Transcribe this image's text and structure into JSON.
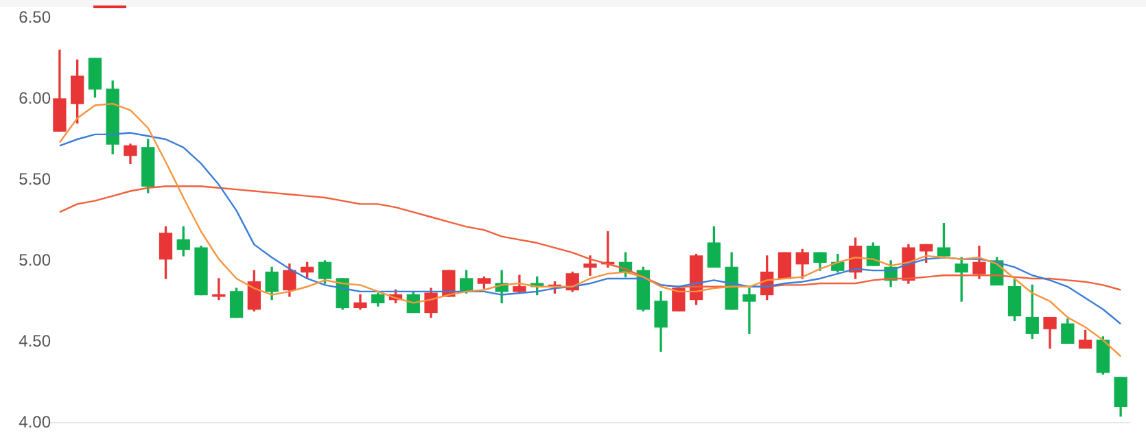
{
  "chart_data": {
    "type": "candlestick",
    "categories": [
      null,
      null,
      null,
      null,
      null,
      null,
      null,
      null,
      null,
      null,
      null,
      null,
      null,
      null,
      null,
      null,
      null,
      null,
      null,
      null,
      null,
      null,
      null,
      null,
      null,
      null,
      null,
      null,
      null,
      null,
      null,
      null,
      null,
      null,
      null,
      null,
      null,
      null,
      null,
      null,
      null,
      null,
      null,
      null,
      null,
      null,
      null,
      null,
      null,
      null,
      null,
      null,
      null,
      null,
      null,
      null,
      null,
      null,
      null,
      null,
      null
    ],
    "ohlc": [
      [
        5.8,
        6.3,
        5.8,
        6.0
      ],
      [
        5.97,
        6.24,
        5.85,
        6.14
      ],
      [
        6.25,
        6.25,
        6.01,
        6.06
      ],
      [
        6.06,
        6.11,
        5.66,
        5.72
      ],
      [
        5.65,
        5.72,
        5.6,
        5.71
      ],
      [
        5.7,
        5.75,
        5.42,
        5.46
      ],
      [
        5.01,
        5.21,
        4.89,
        5.17
      ],
      [
        5.13,
        5.21,
        5.03,
        5.07
      ],
      [
        5.08,
        5.09,
        4.79,
        4.79
      ],
      [
        4.78,
        4.89,
        4.76,
        4.79
      ],
      [
        4.81,
        4.83,
        4.65,
        4.65
      ],
      [
        4.7,
        4.94,
        4.69,
        4.87
      ],
      [
        4.93,
        4.96,
        4.76,
        4.81
      ],
      [
        4.82,
        4.98,
        4.78,
        4.94
      ],
      [
        4.93,
        4.99,
        4.89,
        4.96
      ],
      [
        4.99,
        5.0,
        4.86,
        4.89
      ],
      [
        4.89,
        4.89,
        4.7,
        4.71
      ],
      [
        4.71,
        4.79,
        4.7,
        4.74
      ],
      [
        4.79,
        4.8,
        4.72,
        4.74
      ],
      [
        4.76,
        4.82,
        4.74,
        4.79
      ],
      [
        4.79,
        4.81,
        4.68,
        4.68
      ],
      [
        4.68,
        4.83,
        4.65,
        4.8
      ],
      [
        4.78,
        4.94,
        4.78,
        4.94
      ],
      [
        4.89,
        4.94,
        4.8,
        4.81
      ],
      [
        4.86,
        4.9,
        4.83,
        4.89
      ],
      [
        4.86,
        4.94,
        4.74,
        4.81
      ],
      [
        4.81,
        4.91,
        4.8,
        4.84
      ],
      [
        4.86,
        4.9,
        4.79,
        4.84
      ],
      [
        4.84,
        4.87,
        4.8,
        4.85
      ],
      [
        4.82,
        4.93,
        4.81,
        4.92
      ],
      [
        4.96,
        5.03,
        4.91,
        4.98
      ],
      [
        4.98,
        5.18,
        4.96,
        4.99
      ],
      [
        4.99,
        5.05,
        4.9,
        4.93
      ],
      [
        4.94,
        4.96,
        4.69,
        4.7
      ],
      [
        4.75,
        4.81,
        4.44,
        4.59
      ],
      [
        4.69,
        4.83,
        4.69,
        4.83
      ],
      [
        4.76,
        5.04,
        4.73,
        5.03
      ],
      [
        5.11,
        5.21,
        4.96,
        4.96
      ],
      [
        4.96,
        5.05,
        4.7,
        4.7
      ],
      [
        4.79,
        4.83,
        4.55,
        4.75
      ],
      [
        4.79,
        5.03,
        4.76,
        4.93
      ],
      [
        4.89,
        5.05,
        4.89,
        5.05
      ],
      [
        4.98,
        5.07,
        4.89,
        5.05
      ],
      [
        5.05,
        5.05,
        4.94,
        4.99
      ],
      [
        4.99,
        5.04,
        4.93,
        4.94
      ],
      [
        4.93,
        5.14,
        4.89,
        5.09
      ],
      [
        5.09,
        5.11,
        4.97,
        4.97
      ],
      [
        4.96,
        5.0,
        4.84,
        4.88
      ],
      [
        4.88,
        5.1,
        4.86,
        5.08
      ],
      [
        5.06,
        5.1,
        4.99,
        5.1
      ],
      [
        5.08,
        5.23,
        5.03,
        5.03
      ],
      [
        4.98,
        5.02,
        4.75,
        4.93
      ],
      [
        4.92,
        5.09,
        4.89,
        4.99
      ],
      [
        5.0,
        5.02,
        4.85,
        4.85
      ],
      [
        4.84,
        4.89,
        4.63,
        4.66
      ],
      [
        4.65,
        4.85,
        4.52,
        4.55
      ],
      [
        4.58,
        4.65,
        4.46,
        4.65
      ],
      [
        4.61,
        4.64,
        4.49,
        4.49
      ],
      [
        4.46,
        4.57,
        4.46,
        4.51
      ],
      [
        4.51,
        4.53,
        4.3,
        4.31
      ],
      [
        4.28,
        4.28,
        4.04,
        4.1
      ]
    ],
    "colors": [
      "#e83636",
      "#e83636",
      "#0eb04f",
      "#0eb04f",
      "#e83636",
      "#0eb04f",
      "#e83636",
      "#0eb04f",
      "#0eb04f",
      "#e83636",
      "#0eb04f",
      "#e83636",
      "#0eb04f",
      "#e83636",
      "#e83636",
      "#0eb04f",
      "#0eb04f",
      "#e83636",
      "#0eb04f",
      "#e83636",
      "#0eb04f",
      "#e83636",
      "#e83636",
      "#0eb04f",
      "#e83636",
      "#0eb04f",
      "#e83636",
      "#0eb04f",
      "#e83636",
      "#e83636",
      "#e83636",
      "#e83636",
      "#0eb04f",
      "#0eb04f",
      "#0eb04f",
      "#e83636",
      "#e83636",
      "#0eb04f",
      "#0eb04f",
      "#0eb04f",
      "#e83636",
      "#e83636",
      "#e83636",
      "#0eb04f",
      "#0eb04f",
      "#e83636",
      "#0eb04f",
      "#0eb04f",
      "#e83636",
      "#e83636",
      "#0eb04f",
      "#0eb04f",
      "#e83636",
      "#0eb04f",
      "#0eb04f",
      "#0eb04f",
      "#e83636",
      "#0eb04f",
      "#e83636",
      "#0eb04f",
      "#0eb04f"
    ],
    "series": [
      {
        "type": "line",
        "color": "#f7953f",
        "values": [
          5.73,
          5.88,
          5.96,
          5.97,
          5.93,
          5.82,
          5.61,
          5.39,
          5.18,
          5.01,
          4.89,
          4.83,
          4.79,
          4.81,
          4.84,
          4.88,
          4.86,
          4.85,
          4.81,
          4.77,
          4.74,
          4.76,
          4.79,
          4.81,
          4.82,
          4.85,
          4.86,
          4.84,
          4.84,
          4.84,
          4.89,
          4.92,
          4.93,
          4.9,
          4.84,
          4.81,
          4.81,
          4.83,
          4.84,
          4.84,
          4.88,
          4.89,
          4.9,
          4.95,
          4.99,
          5.02,
          5.01,
          4.97,
          4.99,
          5.03,
          5.02,
          5.01,
          5.02,
          4.98,
          4.89,
          4.8,
          4.75,
          4.65,
          4.59,
          4.51,
          4.41
        ]
      },
      {
        "type": "line",
        "color": "#3b7dd8",
        "values": [
          5.71,
          5.75,
          5.78,
          5.78,
          5.79,
          5.77,
          5.75,
          5.7,
          5.6,
          5.47,
          5.31,
          5.1,
          5.02,
          4.95,
          4.89,
          4.85,
          4.83,
          4.81,
          4.81,
          4.81,
          4.81,
          4.81,
          4.81,
          4.81,
          4.81,
          4.79,
          4.8,
          4.81,
          4.83,
          4.84,
          4.86,
          4.89,
          4.89,
          4.89,
          4.85,
          4.84,
          4.86,
          4.88,
          4.86,
          4.84,
          4.84,
          4.86,
          4.87,
          4.89,
          4.92,
          4.95,
          4.94,
          4.94,
          4.98,
          5.01,
          5.02,
          5.01,
          5.01,
          4.99,
          4.96,
          4.91,
          4.88,
          4.84,
          4.77,
          4.7,
          4.61
        ]
      },
      {
        "type": "line",
        "color": "#f0603c",
        "values": [
          5.3,
          5.35,
          5.37,
          5.4,
          5.43,
          5.45,
          5.46,
          5.46,
          5.46,
          5.45,
          5.44,
          5.43,
          5.42,
          5.41,
          5.4,
          5.39,
          5.37,
          5.35,
          5.35,
          5.33,
          5.3,
          5.27,
          5.24,
          5.21,
          5.19,
          5.15,
          5.13,
          5.11,
          5.08,
          5.05,
          5.01,
          4.98,
          4.95,
          4.9,
          4.85,
          4.84,
          4.84,
          4.84,
          4.84,
          4.84,
          4.84,
          4.85,
          4.85,
          4.86,
          4.86,
          4.86,
          4.88,
          4.89,
          4.89,
          4.9,
          4.91,
          4.91,
          4.91,
          4.91,
          4.9,
          4.89,
          4.89,
          4.88,
          4.87,
          4.85,
          4.82
        ]
      }
    ],
    "ylim": [
      4,
      6.5
    ],
    "yticks": [
      {
        "value": 4,
        "label": "4.00"
      },
      {
        "value": 4.5,
        "label": "4.50"
      },
      {
        "value": 5,
        "label": "5.00"
      },
      {
        "value": 5.5,
        "label": "5.50"
      },
      {
        "value": 6,
        "label": "6.00"
      },
      {
        "value": 6.5,
        "label": "6.50"
      }
    ],
    "tick_labels": "y"
  }
}
